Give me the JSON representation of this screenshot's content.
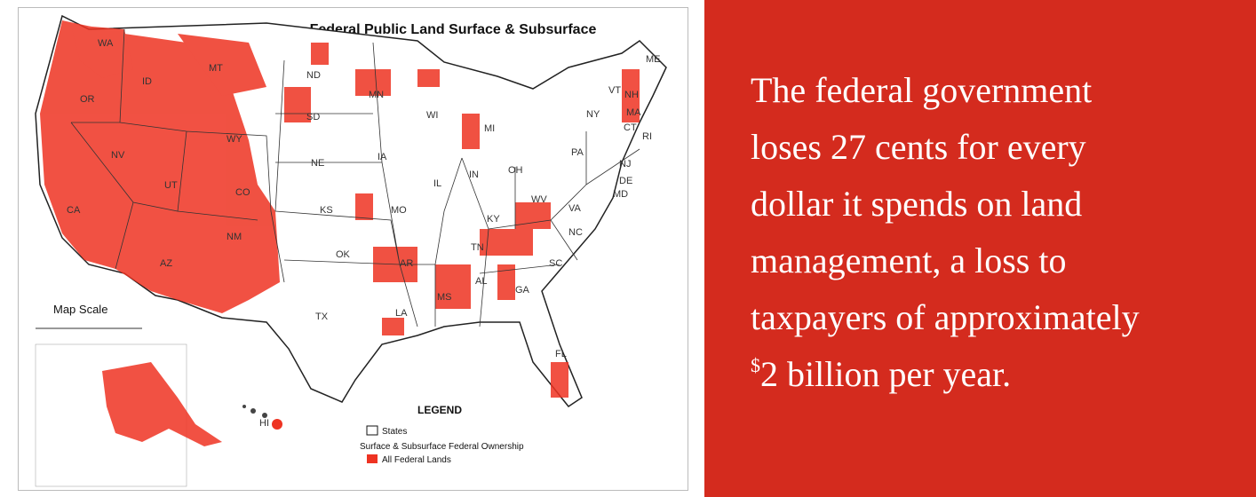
{
  "map": {
    "title": "Federal Public Land Surface & Subsurface",
    "state_labels": [
      "WA",
      "OR",
      "ID",
      "MT",
      "WY",
      "NV",
      "UT",
      "CO",
      "CA",
      "AZ",
      "NM",
      "ND",
      "SD",
      "NE",
      "KS",
      "OK",
      "TX",
      "MN",
      "IA",
      "MO",
      "AR",
      "LA",
      "WI",
      "MI",
      "IL",
      "IN",
      "OH",
      "KY",
      "TN",
      "MS",
      "AL",
      "GA",
      "FL",
      "SC",
      "NC",
      "VA",
      "WV",
      "PA",
      "NY",
      "VT",
      "NH",
      "ME",
      "MA",
      "CT",
      "RI",
      "NJ",
      "DE",
      "MD",
      "HI"
    ],
    "scale_title": "Map Scale",
    "legend": {
      "title": "LEGEND",
      "states": "States",
      "ownership": "Surface & Subsurface Federal Ownership",
      "federal_lands": "All Federal Lands"
    }
  },
  "panel": {
    "lines": [
      "The federal government",
      "loses 27 cents for every",
      "dollar it spends on land",
      "management, a loss to",
      "taxpayers of approximately"
    ],
    "last_line": {
      "sup": "$",
      "text": "2 billion per year."
    }
  }
}
